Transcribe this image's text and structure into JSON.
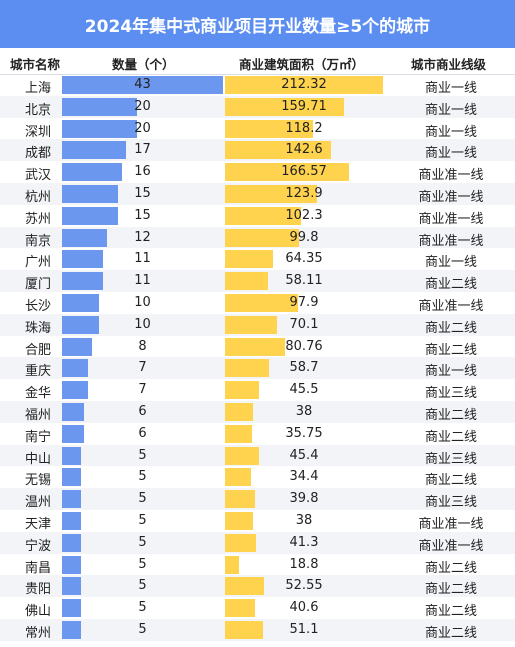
{
  "chart_data": {
    "type": "table",
    "title": "2024年集中式商业项目开业数量≥5个的城市",
    "columns": [
      "城市名称",
      "数量（个）",
      "商业建筑面积（万㎡）",
      "城市商业线级"
    ],
    "rows": [
      {
        "city": "上海",
        "count": 43,
        "area": "212.32",
        "tier": "商业一线"
      },
      {
        "city": "北京",
        "count": 20,
        "area": "159.71",
        "tier": "商业一线"
      },
      {
        "city": "深圳",
        "count": 20,
        "area": "118.2",
        "tier": "商业一线"
      },
      {
        "city": "成都",
        "count": 17,
        "area": "142.6",
        "tier": "商业一线"
      },
      {
        "city": "武汉",
        "count": 16,
        "area": "166.57",
        "tier": "商业准一线"
      },
      {
        "city": "杭州",
        "count": 15,
        "area": "123.9",
        "tier": "商业准一线"
      },
      {
        "city": "苏州",
        "count": 15,
        "area": "102.3",
        "tier": "商业准一线"
      },
      {
        "city": "南京",
        "count": 12,
        "area": "99.8",
        "tier": "商业准一线"
      },
      {
        "city": "广州",
        "count": 11,
        "area": "64.35",
        "tier": "商业一线"
      },
      {
        "city": "厦门",
        "count": 11,
        "area": "58.11",
        "tier": "商业二线"
      },
      {
        "city": "长沙",
        "count": 10,
        "area": "97.9",
        "tier": "商业准一线"
      },
      {
        "city": "珠海",
        "count": 10,
        "area": "70.1",
        "tier": "商业二线"
      },
      {
        "city": "合肥",
        "count": 8,
        "area": "80.76",
        "tier": "商业二线"
      },
      {
        "city": "重庆",
        "count": 7,
        "area": "58.7",
        "tier": "商业一线"
      },
      {
        "city": "金华",
        "count": 7,
        "area": "45.5",
        "tier": "商业三线"
      },
      {
        "city": "福州",
        "count": 6,
        "area": "38",
        "tier": "商业二线"
      },
      {
        "city": "南宁",
        "count": 6,
        "area": "35.75",
        "tier": "商业二线"
      },
      {
        "city": "中山",
        "count": 5,
        "area": "45.4",
        "tier": "商业三线"
      },
      {
        "city": "无锡",
        "count": 5,
        "area": "34.4",
        "tier": "商业二线"
      },
      {
        "city": "温州",
        "count": 5,
        "area": "39.8",
        "tier": "商业三线"
      },
      {
        "city": "天津",
        "count": 5,
        "area": "38",
        "tier": "商业准一线"
      },
      {
        "city": "宁波",
        "count": 5,
        "area": "41.3",
        "tier": "商业准一线"
      },
      {
        "city": "南昌",
        "count": 5,
        "area": "18.8",
        "tier": "商业二线"
      },
      {
        "city": "贵阳",
        "count": 5,
        "area": "52.55",
        "tier": "商业二线"
      },
      {
        "city": "佛山",
        "count": 5,
        "area": "40.6",
        "tier": "商业二线"
      },
      {
        "city": "常州",
        "count": 5,
        "area": "51.1",
        "tier": "商业二线"
      }
    ],
    "count_max": 43,
    "area_max": 212.32
  },
  "colors": {
    "title_bg": "#5b8ef0",
    "count_bar": "#6b97ee",
    "area_bar": "#ffd34d"
  }
}
